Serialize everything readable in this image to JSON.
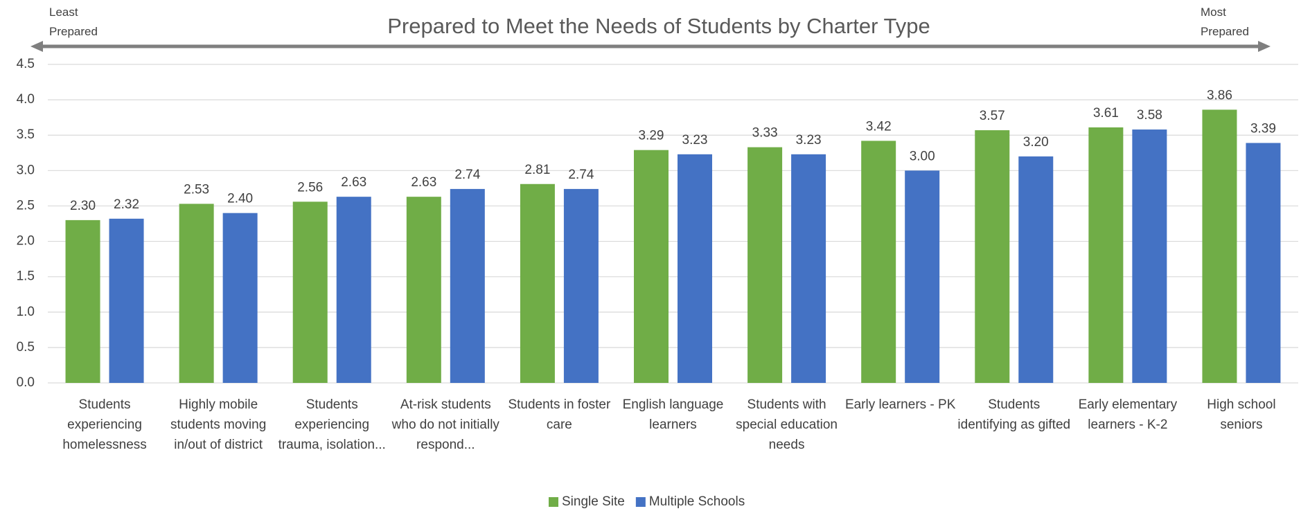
{
  "chart_data": {
    "type": "bar",
    "title": "Prepared to Meet the Needs of Students by Charter Type",
    "annotations": [
      "Least Prepared",
      "Most Prepared"
    ],
    "categories": [
      "Students experiencing homelessness",
      "Highly mobile students moving in/out of district",
      "Students experiencing trauma, isolation...",
      "At-risk students who do not initially respond...",
      "Students in foster care",
      "English language learners",
      "Students with special education needs",
      "Early learners - PK",
      "Students identifying as gifted",
      "Early elementary learners - K-2",
      "High school seniors"
    ],
    "series": [
      {
        "name": "Single Site",
        "color": "#70ad47",
        "values": [
          2.3,
          2.53,
          2.56,
          2.63,
          2.81,
          3.29,
          3.33,
          3.42,
          3.57,
          3.61,
          3.86
        ],
        "value_labels": [
          "2.30",
          "2.53",
          "2.56",
          "2.63",
          "2.81",
          "3.29",
          "3.33",
          "3.42",
          "3.57",
          "3.61",
          "3.86"
        ]
      },
      {
        "name": "Multiple Schools",
        "color": "#4472c4",
        "values": [
          2.32,
          2.4,
          2.63,
          2.74,
          2.74,
          3.23,
          3.23,
          3.0,
          3.2,
          3.58,
          3.39
        ],
        "value_labels": [
          "2.32",
          "2.40",
          "2.63",
          "2.74",
          "2.74",
          "3.23",
          "3.23",
          "3.00",
          "3.20",
          "3.58",
          "3.39"
        ]
      }
    ],
    "ylim": [
      0,
      4.5
    ],
    "yticks": [
      {
        "value": 0,
        "label": "0.0"
      },
      0.5,
      {
        "value": 1,
        "label": "1.0"
      },
      1.5,
      {
        "value": 2,
        "label": "2.0"
      },
      2.5,
      {
        "value": 3,
        "label": "3.0"
      },
      3.5,
      {
        "value": 4,
        "label": "4.0"
      },
      4.5
    ],
    "grid": true,
    "legend": "bottom"
  }
}
